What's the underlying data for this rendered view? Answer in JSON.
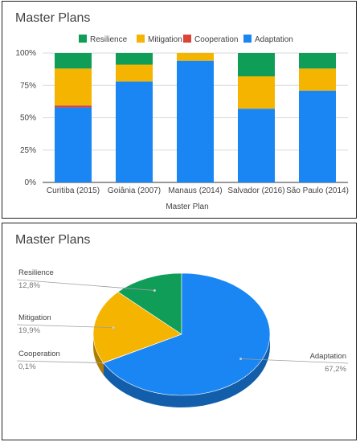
{
  "colors": {
    "Resilience": "#0f9d58",
    "Mitigation": "#f4b400",
    "Cooperation": "#db4437",
    "Adaptation": "#1a86f3",
    "grid": "#d9d9d9",
    "axis_text": "#424242"
  },
  "chart_data": [
    {
      "type": "bar",
      "stacked": "percent",
      "title": "Master Plans",
      "xlabel": "Master Plan",
      "ylabel": "",
      "ylim": [
        0,
        100
      ],
      "yticks": [
        "0%",
        "25%",
        "50%",
        "75%",
        "100%"
      ],
      "legend_position": "top",
      "legend": [
        "Resilience",
        "Mitigation",
        "Cooperation",
        "Adaptation"
      ],
      "categories": [
        "Curitiba (2015)",
        "Goiânia (2007)",
        "Manaus (2014)",
        "Salvador (2016)",
        "São Paulo (2014)"
      ],
      "series": [
        {
          "name": "Adaptation",
          "values": [
            58,
            78,
            94,
            57,
            71
          ]
        },
        {
          "name": "Cooperation",
          "values": [
            1.5,
            0,
            0,
            0,
            0
          ]
        },
        {
          "name": "Mitigation",
          "values": [
            28.5,
            13,
            6,
            25,
            17
          ]
        },
        {
          "name": "Resilience",
          "values": [
            12,
            9,
            0,
            18,
            12
          ]
        }
      ],
      "grid": true
    },
    {
      "type": "pie",
      "style": "3d",
      "title": "Master Plans",
      "slices": [
        {
          "label": "Resilience",
          "value": 12.8,
          "display": "12,8%"
        },
        {
          "label": "Mitigation",
          "value": 19.9,
          "display": "19,9%"
        },
        {
          "label": "Cooperation",
          "value": 0.1,
          "display": "0,1%"
        },
        {
          "label": "Adaptation",
          "value": 67.2,
          "display": "67,2%"
        }
      ]
    }
  ]
}
